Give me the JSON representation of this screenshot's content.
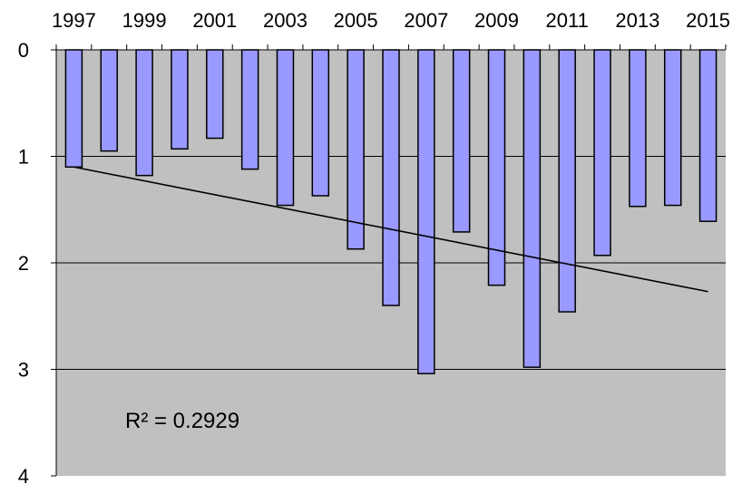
{
  "chart_data": {
    "type": "bar",
    "orientation": "vertical",
    "y_axis_inverted": true,
    "x_axis_position": "top",
    "categories": [
      "1997",
      "1998",
      "1999",
      "2000",
      "2001",
      "2002",
      "2003",
      "2004",
      "2005",
      "2006",
      "2007",
      "2008",
      "2009",
      "2010",
      "2011",
      "2012",
      "2013",
      "2014",
      "2015"
    ],
    "x_tick_labels": [
      "1997",
      "1999",
      "2001",
      "2003",
      "2005",
      "2007",
      "2009",
      "2011",
      "2013",
      "2015"
    ],
    "values": [
      1.1,
      0.95,
      1.18,
      0.93,
      0.83,
      1.12,
      1.46,
      1.37,
      1.87,
      2.4,
      3.04,
      1.71,
      2.21,
      2.98,
      2.46,
      1.93,
      1.47,
      1.46,
      1.61
    ],
    "ylim": [
      0,
      4
    ],
    "y_ticks": [
      0,
      1,
      2,
      3,
      4
    ],
    "grid": true,
    "plot_background": "#c0c0c0",
    "bar_fill": "#9999ff",
    "bar_stroke": "#000000",
    "trendline": {
      "type": "linear",
      "start_value": 1.1,
      "end_value": 2.27,
      "r_squared_label": "R² = 0.2929"
    }
  }
}
